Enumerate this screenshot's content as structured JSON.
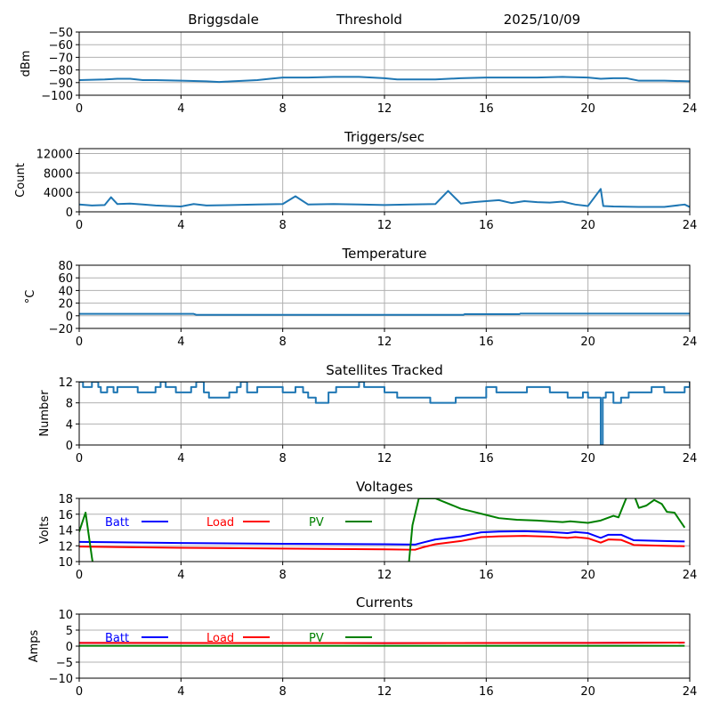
{
  "header": {
    "station": "Briggsdale",
    "mode": "Threshold",
    "date": "2025/10/09"
  },
  "chart_data": [
    {
      "id": "dbm",
      "type": "line",
      "title": "",
      "xlabel": "",
      "ylabel": "dBm",
      "xlim": [
        0,
        24
      ],
      "ylim": [
        -100,
        -50
      ],
      "xticks": [
        0,
        4,
        8,
        12,
        16,
        20,
        24
      ],
      "yticks": [
        -100,
        -90,
        -80,
        -70,
        -60,
        -50
      ],
      "ytick_labels": [
        "−100",
        "−90",
        "−80",
        "−70",
        "−60",
        "−50"
      ],
      "grid": true,
      "series": [
        {
          "name": "Threshold",
          "color": "#1f77b4",
          "x": [
            0,
            1,
            1.5,
            2,
            2.5,
            3,
            4,
            5,
            5.5,
            6,
            7,
            7.5,
            8,
            8.5,
            9,
            10,
            11,
            12,
            12.5,
            13,
            14,
            15,
            16,
            17,
            18,
            19,
            20,
            20.5,
            21,
            21.5,
            22,
            23,
            24
          ],
          "y": [
            -88,
            -87.5,
            -87,
            -87,
            -88,
            -88,
            -88.5,
            -89,
            -89.5,
            -89,
            -88,
            -87,
            -86,
            -86,
            -86,
            -85.5,
            -85.5,
            -86.5,
            -87.5,
            -87.5,
            -87.5,
            -86.5,
            -86,
            -86,
            -86,
            -85.5,
            -86,
            -87,
            -86.5,
            -86.5,
            -88.5,
            -88.5,
            -89
          ]
        }
      ]
    },
    {
      "id": "triggers",
      "type": "line",
      "title": "Triggers/sec",
      "xlabel": "",
      "ylabel": "Count",
      "xlim": [
        0,
        24
      ],
      "ylim": [
        0,
        13000
      ],
      "xticks": [
        0,
        4,
        8,
        12,
        16,
        20,
        24
      ],
      "yticks": [
        0,
        4000,
        8000,
        12000
      ],
      "ytick_labels": [
        "0",
        "4000",
        "8000",
        "12000"
      ],
      "grid": true,
      "series": [
        {
          "name": "Triggers",
          "color": "#1f77b4",
          "x": [
            0,
            0.5,
            1,
            1.25,
            1.5,
            2,
            2.5,
            3,
            3.5,
            4,
            4.5,
            5,
            6,
            7,
            8,
            8.5,
            9,
            10,
            11,
            12,
            13,
            14,
            14.5,
            15,
            15.5,
            16,
            16.5,
            17,
            17.5,
            18,
            18.5,
            19,
            19.5,
            20,
            20.5,
            20.6,
            21,
            22,
            23,
            23.8,
            24
          ],
          "y": [
            1500,
            1300,
            1400,
            3000,
            1600,
            1700,
            1500,
            1300,
            1200,
            1100,
            1600,
            1300,
            1400,
            1500,
            1600,
            3200,
            1500,
            1600,
            1500,
            1400,
            1500,
            1600,
            4300,
            1700,
            2000,
            2200,
            2400,
            1800,
            2200,
            2000,
            1900,
            2100,
            1500,
            1200,
            4700,
            1200,
            1100,
            1000,
            1000,
            1500,
            1000
          ]
        }
      ]
    },
    {
      "id": "temperature",
      "type": "line",
      "title": "Temperature",
      "xlabel": "",
      "ylabel": "°C",
      "xlim": [
        0,
        24
      ],
      "ylim": [
        -20,
        80
      ],
      "xticks": [
        0,
        4,
        8,
        12,
        16,
        20,
        24
      ],
      "yticks": [
        -20,
        0,
        20,
        40,
        60,
        80
      ],
      "ytick_labels": [
        "−20",
        "0",
        "20",
        "40",
        "60",
        "80"
      ],
      "grid": true,
      "series": [
        {
          "name": "Temperature",
          "color": "#1f77b4",
          "x": [
            0,
            3.7,
            4.5,
            4.6,
            15.1,
            15.15,
            17.3,
            17.35,
            24
          ],
          "y": [
            3,
            3,
            3,
            1.5,
            1.5,
            2.5,
            2.5,
            3.5,
            3.5
          ]
        }
      ]
    },
    {
      "id": "satellites",
      "type": "step",
      "title": "Satellites Tracked",
      "xlabel": "",
      "ylabel": "Number",
      "xlim": [
        0,
        24
      ],
      "ylim": [
        0,
        12
      ],
      "xticks": [
        0,
        4,
        8,
        12,
        16,
        20,
        24
      ],
      "yticks": [
        0,
        4,
        8,
        12
      ],
      "ytick_labels": [
        "0",
        "4",
        "8",
        "12"
      ],
      "grid": true,
      "series": [
        {
          "name": "Satellites",
          "color": "#1f77b4",
          "x": [
            0,
            0.15,
            0.5,
            0.75,
            0.85,
            1.1,
            1.35,
            1.5,
            1.6,
            2.3,
            2.5,
            3.0,
            3.2,
            3.4,
            3.6,
            3.8,
            4.4,
            4.6,
            4.9,
            5.1,
            5.7,
            5.9,
            6.2,
            6.35,
            6.6,
            7.0,
            7.5,
            8.0,
            8.5,
            8.8,
            9.0,
            9.3,
            9.5,
            9.8,
            10.1,
            11.0,
            11.2,
            11.5,
            12.0,
            12.3,
            12.5,
            13.0,
            13.4,
            13.8,
            14.6,
            14.8,
            15.0,
            15.7,
            16.0,
            16.4,
            16.8,
            17.2,
            17.6,
            18.0,
            18.5,
            18.8,
            19.2,
            19.5,
            19.8,
            20.0,
            20.5,
            20.58,
            20.7,
            21.0,
            21.3,
            21.6,
            22.0,
            22.5,
            23.0,
            23.3,
            23.8,
            24
          ],
          "y": [
            12,
            11,
            12,
            11,
            10,
            11,
            10,
            11,
            11,
            10,
            10,
            11,
            12,
            11,
            11,
            10,
            11,
            12,
            10,
            9,
            9,
            10,
            11,
            12,
            10,
            11,
            11,
            10,
            11,
            10,
            9,
            8,
            8,
            10,
            11,
            12,
            11,
            11,
            10,
            10,
            9,
            9,
            9,
            8,
            8,
            9,
            9,
            9,
            11,
            10,
            10,
            10,
            11,
            11,
            10,
            10,
            9,
            9,
            10,
            9,
            0,
            9,
            10,
            8,
            9,
            10,
            10,
            11,
            10,
            10,
            11,
            12
          ]
        }
      ]
    },
    {
      "id": "voltages",
      "type": "line",
      "title": "Voltages",
      "xlabel": "",
      "ylabel": "Volts",
      "xlim": [
        0,
        24
      ],
      "ylim": [
        10,
        18
      ],
      "xticks": [
        0,
        4,
        8,
        12,
        16,
        20,
        24
      ],
      "yticks": [
        10,
        12,
        14,
        16,
        18
      ],
      "ytick_labels": [
        "10",
        "12",
        "14",
        "16",
        "18"
      ],
      "grid": true,
      "legend": {
        "placement": "top-left-row",
        "entries": [
          "Batt",
          "Load",
          "PV"
        ]
      },
      "series": [
        {
          "name": "Batt",
          "color": "#0000ff",
          "x": [
            0,
            4,
            8,
            12,
            13.2,
            13.5,
            14,
            15,
            15.8,
            16.5,
            17.5,
            18.5,
            19.2,
            19.5,
            20,
            20.5,
            20.8,
            21.3,
            21.8,
            23,
            23.8
          ],
          "y": [
            12.5,
            12.35,
            12.25,
            12.2,
            12.15,
            12.4,
            12.8,
            13.2,
            13.7,
            13.8,
            13.85,
            13.75,
            13.6,
            13.75,
            13.6,
            13.0,
            13.4,
            13.4,
            12.7,
            12.6,
            12.55
          ]
        },
        {
          "name": "Load",
          "color": "#ff0000",
          "x": [
            0,
            4,
            8,
            12,
            13.2,
            13.5,
            14,
            15,
            15.8,
            16.5,
            17.5,
            18.5,
            19.2,
            19.5,
            20,
            20.5,
            20.8,
            21.3,
            21.8,
            23,
            23.8
          ],
          "y": [
            11.9,
            11.75,
            11.65,
            11.55,
            11.5,
            11.8,
            12.2,
            12.6,
            13.1,
            13.2,
            13.25,
            13.15,
            13.0,
            13.1,
            12.95,
            12.4,
            12.8,
            12.75,
            12.1,
            12.0,
            11.95
          ]
        },
        {
          "name": "PV",
          "color": "#008000",
          "x": [
            0,
            0.25,
            0.5,
            0.55,
            12.95,
            13.1,
            13.35,
            14,
            15,
            15.5,
            16,
            16.5,
            17.2,
            18,
            19,
            19.3,
            20,
            20.5,
            21,
            21.2,
            21.5,
            21.8,
            22,
            22.3,
            22.6,
            22.9,
            23.1,
            23.4,
            23.8
          ],
          "y": [
            13.8,
            16.2,
            10.5,
            9.5,
            9.5,
            14.6,
            18.0,
            18.0,
            16.7,
            16.3,
            15.9,
            15.5,
            15.3,
            15.2,
            15.0,
            15.1,
            14.9,
            15.2,
            15.8,
            15.6,
            18.0,
            18.5,
            16.8,
            17.1,
            17.8,
            17.3,
            16.3,
            16.2,
            14.3
          ]
        }
      ]
    },
    {
      "id": "currents",
      "type": "line",
      "title": "Currents",
      "xlabel": "",
      "ylabel": "Amps",
      "xlim": [
        0,
        24
      ],
      "ylim": [
        -10,
        10
      ],
      "xticks": [
        0,
        4,
        8,
        12,
        16,
        20,
        24
      ],
      "yticks": [
        -10,
        -5,
        0,
        5,
        10
      ],
      "ytick_labels": [
        "−10",
        "−5",
        "0",
        "5",
        "10"
      ],
      "grid": true,
      "legend": {
        "placement": "top-left-row",
        "entries": [
          "Batt",
          "Load",
          "PV"
        ]
      },
      "series": [
        {
          "name": "Batt",
          "color": "#0000ff",
          "x": [
            0,
            12,
            20,
            23.8
          ],
          "y": [
            1.0,
            0.95,
            1.0,
            1.1
          ]
        },
        {
          "name": "Load",
          "color": "#ff0000",
          "x": [
            0,
            12,
            20,
            23.8
          ],
          "y": [
            1.0,
            0.95,
            1.0,
            1.1
          ]
        },
        {
          "name": "PV",
          "color": "#008000",
          "x": [
            0,
            23.8
          ],
          "y": [
            0.1,
            0.1
          ]
        }
      ]
    }
  ]
}
